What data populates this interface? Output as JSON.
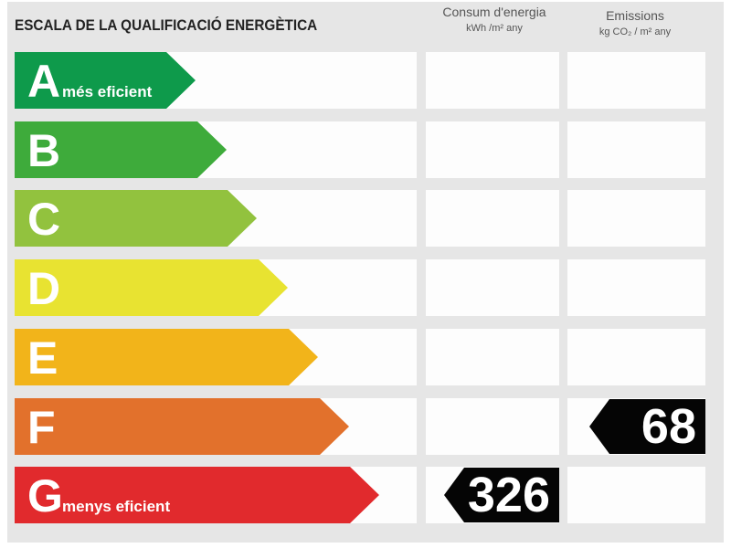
{
  "header": {
    "title": "ESCALA DE LA QUALIFICACIÓ ENERGÈTICA",
    "energy_col": {
      "line1": "Consum d'energia",
      "unit": "kWh /m² any"
    },
    "emissions_col": {
      "line1": "Emissions",
      "unit": "kg CO₂ / m² any"
    }
  },
  "scale": [
    {
      "letter": "A",
      "label": "més eficient",
      "color": "#0e9a4b"
    },
    {
      "letter": "B",
      "label": "",
      "color": "#3eab3b"
    },
    {
      "letter": "C",
      "label": "",
      "color": "#92c23e"
    },
    {
      "letter": "D",
      "label": "",
      "color": "#e8e331"
    },
    {
      "letter": "E",
      "label": "",
      "color": "#f2b41a"
    },
    {
      "letter": "F",
      "label": "",
      "color": "#e2712c"
    },
    {
      "letter": "G",
      "label": "menys eficient",
      "color": "#e12a2d"
    }
  ],
  "ratings": {
    "energy": {
      "class": "G",
      "value": "326"
    },
    "emissions": {
      "class": "F",
      "value": "68"
    }
  },
  "colors": {
    "indicator": "#050505",
    "panel": "#e6e6e6",
    "cell": "#fdfdfd"
  }
}
